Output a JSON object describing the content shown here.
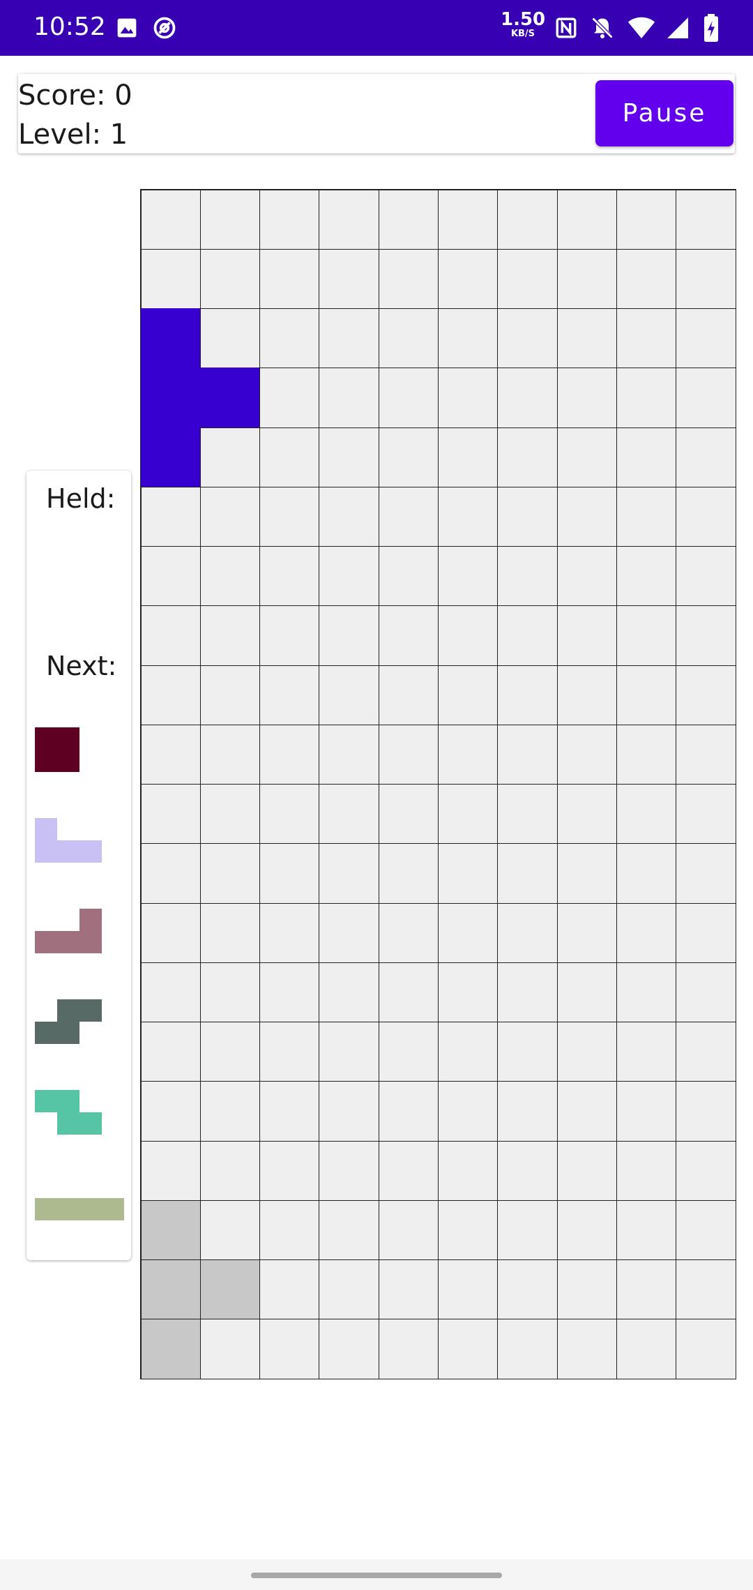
{
  "status_bar": {
    "time": "10:52",
    "net_speed_value": "1.50",
    "net_speed_unit": "KB/S",
    "icons": [
      "image-icon",
      "at-sign-icon",
      "nfc-icon",
      "notifications-off-icon",
      "wifi-icon",
      "signal-icon",
      "battery-charging-icon"
    ]
  },
  "header": {
    "score_text": "Score: 0",
    "level_text": "Level: 1",
    "pause_label": "Pause"
  },
  "side_panel": {
    "held_label": "Held:",
    "next_label": "Next:"
  },
  "colors": {
    "active_piece": "#3700d0",
    "ghost_piece": "#c8c8c8",
    "empty_cell": "#efefef",
    "accent": "#6200ee"
  },
  "board": {
    "columns": 10,
    "rows": 20,
    "active_piece": {
      "color": "#3700d0",
      "cells": [
        [
          2,
          0
        ],
        [
          3,
          0
        ],
        [
          3,
          1
        ],
        [
          4,
          0
        ]
      ]
    },
    "ghost_piece": {
      "color": "#c8c8c8",
      "cells": [
        [
          17,
          0
        ],
        [
          18,
          0
        ],
        [
          18,
          1
        ],
        [
          19,
          0
        ]
      ]
    }
  },
  "next_pieces": [
    {
      "shape": "O",
      "color": "#5e0022",
      "cells": [
        [
          0,
          0
        ],
        [
          0,
          1
        ],
        [
          1,
          0
        ],
        [
          1,
          1
        ]
      ]
    },
    {
      "shape": "J",
      "color": "#c9c0f3",
      "cells": [
        [
          0,
          0
        ],
        [
          1,
          0
        ],
        [
          1,
          1
        ],
        [
          1,
          2
        ]
      ]
    },
    {
      "shape": "L",
      "color": "#a0707f",
      "cells": [
        [
          0,
          2
        ],
        [
          1,
          0
        ],
        [
          1,
          1
        ],
        [
          1,
          2
        ]
      ]
    },
    {
      "shape": "S",
      "color": "#586a65",
      "cells": [
        [
          0,
          1
        ],
        [
          0,
          2
        ],
        [
          1,
          0
        ],
        [
          1,
          1
        ]
      ]
    },
    {
      "shape": "Z",
      "color": "#55c5a5",
      "cells": [
        [
          0,
          0
        ],
        [
          0,
          1
        ],
        [
          1,
          1
        ],
        [
          1,
          2
        ]
      ]
    },
    {
      "shape": "I",
      "color": "#adb98e",
      "cells": [
        [
          0,
          0
        ],
        [
          0,
          1
        ],
        [
          0,
          2
        ],
        [
          0,
          3
        ]
      ]
    }
  ]
}
